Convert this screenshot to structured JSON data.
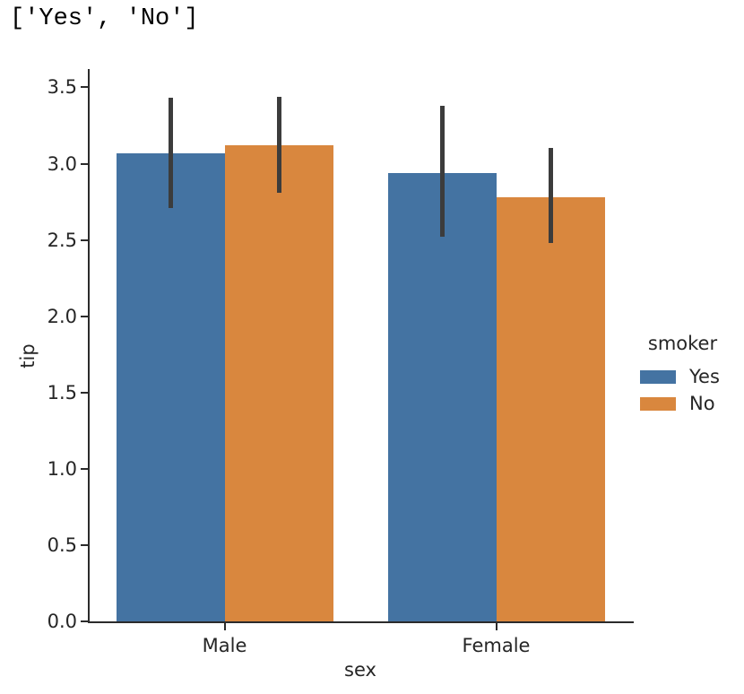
{
  "output": {
    "text": "['Yes', 'No']"
  },
  "chart_data": {
    "type": "bar",
    "categories": [
      "Male",
      "Female"
    ],
    "series": [
      {
        "name": "Yes",
        "color": "#4473A2",
        "values": [
          3.07,
          2.94
        ],
        "ci": [
          [
            2.71,
            3.43
          ],
          [
            2.52,
            3.38
          ]
        ]
      },
      {
        "name": "No",
        "color": "#D9873E",
        "values": [
          3.12,
          2.78
        ],
        "ci": [
          [
            2.81,
            3.44
          ],
          [
            2.48,
            3.1
          ]
        ]
      }
    ],
    "xlabel": "sex",
    "ylabel": "tip",
    "yticks": [
      0.0,
      0.5,
      1.0,
      1.5,
      2.0,
      2.5,
      3.0,
      3.5
    ],
    "ylim": [
      0,
      3.62
    ],
    "grid": false,
    "legend": {
      "title": "smoker",
      "position": "right-outside"
    },
    "error_bar_color": "#3C3C3C",
    "axis_color": "#2B2B2B",
    "text_color": "#262626"
  }
}
